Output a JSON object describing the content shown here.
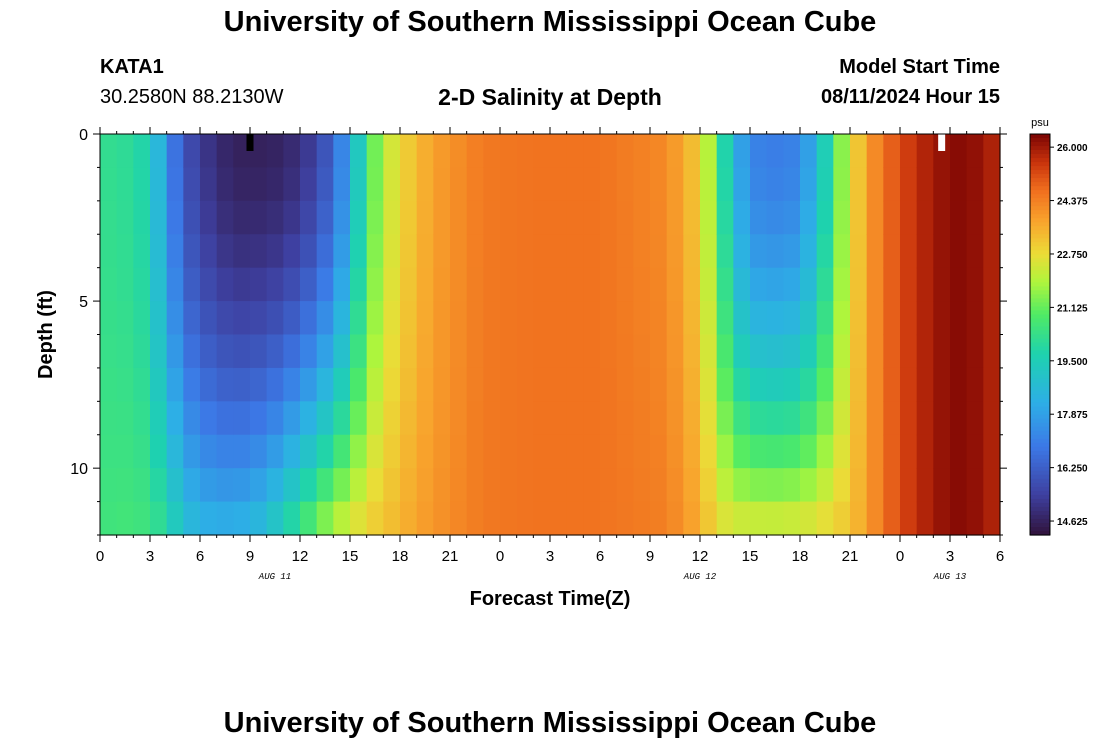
{
  "header": {
    "title": "University of Southern Mississippi Ocean Cube",
    "station": "KATA1",
    "coords": "30.2580N  88.2130W",
    "subtitle": "2-D Salinity at Depth",
    "model_start_label": "Model Start Time",
    "model_start_value": "08/11/2024 Hour 15"
  },
  "footer": {
    "title": "University of Southern Mississippi Ocean Cube"
  },
  "chart_data": {
    "type": "heatmap",
    "title": "2-D Salinity at Depth",
    "xlabel": "Forecast Time(Z)",
    "ylabel": "Depth (ft)",
    "x_range_hours": [
      0,
      54
    ],
    "x_tick_labels": [
      "0",
      "3",
      "6",
      "9",
      "12",
      "15",
      "18",
      "21",
      "0",
      "3",
      "6",
      "9",
      "12",
      "15",
      "18",
      "21",
      "0",
      "3",
      "6"
    ],
    "date_labels": [
      {
        "label": "AUG 11",
        "hour": 10.5
      },
      {
        "label": "AUG 12",
        "hour": 36
      },
      {
        "label": "AUG 13",
        "hour": 51
      }
    ],
    "y_range_ft": [
      0,
      12
    ],
    "y_tick_labels": [
      "0",
      "5",
      "10"
    ],
    "colorbar": {
      "unit": "psu",
      "ticks": [
        "26.000",
        "24.375",
        "22.750",
        "21.125",
        "19.500",
        "17.875",
        "16.250",
        "14.625"
      ],
      "min": 14.2,
      "max": 26.4
    },
    "salinity_profile": {
      "hours": [
        0,
        1,
        2,
        3,
        4,
        5,
        6,
        7,
        8,
        9,
        10,
        11,
        12,
        13,
        14,
        15,
        16,
        17,
        18,
        20,
        23,
        26,
        30,
        34,
        36,
        37,
        38,
        39,
        40,
        41,
        42,
        43,
        44,
        45,
        46,
        47,
        48,
        49,
        50,
        51,
        52,
        53,
        54
      ],
      "surface": [
        20.2,
        20.2,
        20.0,
        19.6,
        17.5,
        16.0,
        15.3,
        14.9,
        14.6,
        14.6,
        14.6,
        14.7,
        15.0,
        15.5,
        16.4,
        18.0,
        20.5,
        22.0,
        22.8,
        23.8,
        24.5,
        24.6,
        24.6,
        24.2,
        23.0,
        21.0,
        18.5,
        17.2,
        17.0,
        17.0,
        17.2,
        18.5,
        20.5,
        22.5,
        23.8,
        24.6,
        25.2,
        25.6,
        26.0,
        26.2,
        26.3,
        26.0,
        25.7
      ],
      "bottom": [
        20.5,
        20.6,
        20.6,
        20.5,
        20.0,
        19.0,
        18.5,
        18.4,
        18.4,
        18.6,
        19.0,
        19.8,
        20.6,
        21.4,
        22.2,
        22.6,
        23.0,
        23.2,
        23.5,
        24.0,
        24.5,
        24.6,
        24.6,
        24.4,
        23.6,
        22.8,
        22.6,
        22.6,
        22.6,
        22.6,
        22.7,
        22.8,
        23.0,
        23.2,
        23.8,
        24.6,
        25.2,
        25.6,
        26.0,
        26.2,
        26.3,
        26.0,
        25.7
      ],
      "depth_exponent": 1.8
    },
    "markers": [
      {
        "hour": 9,
        "depth_ft": 0.5,
        "color": "#000000"
      },
      {
        "hour": 50.5,
        "depth_ft": 0.5,
        "color": "#ffffff"
      }
    ]
  }
}
